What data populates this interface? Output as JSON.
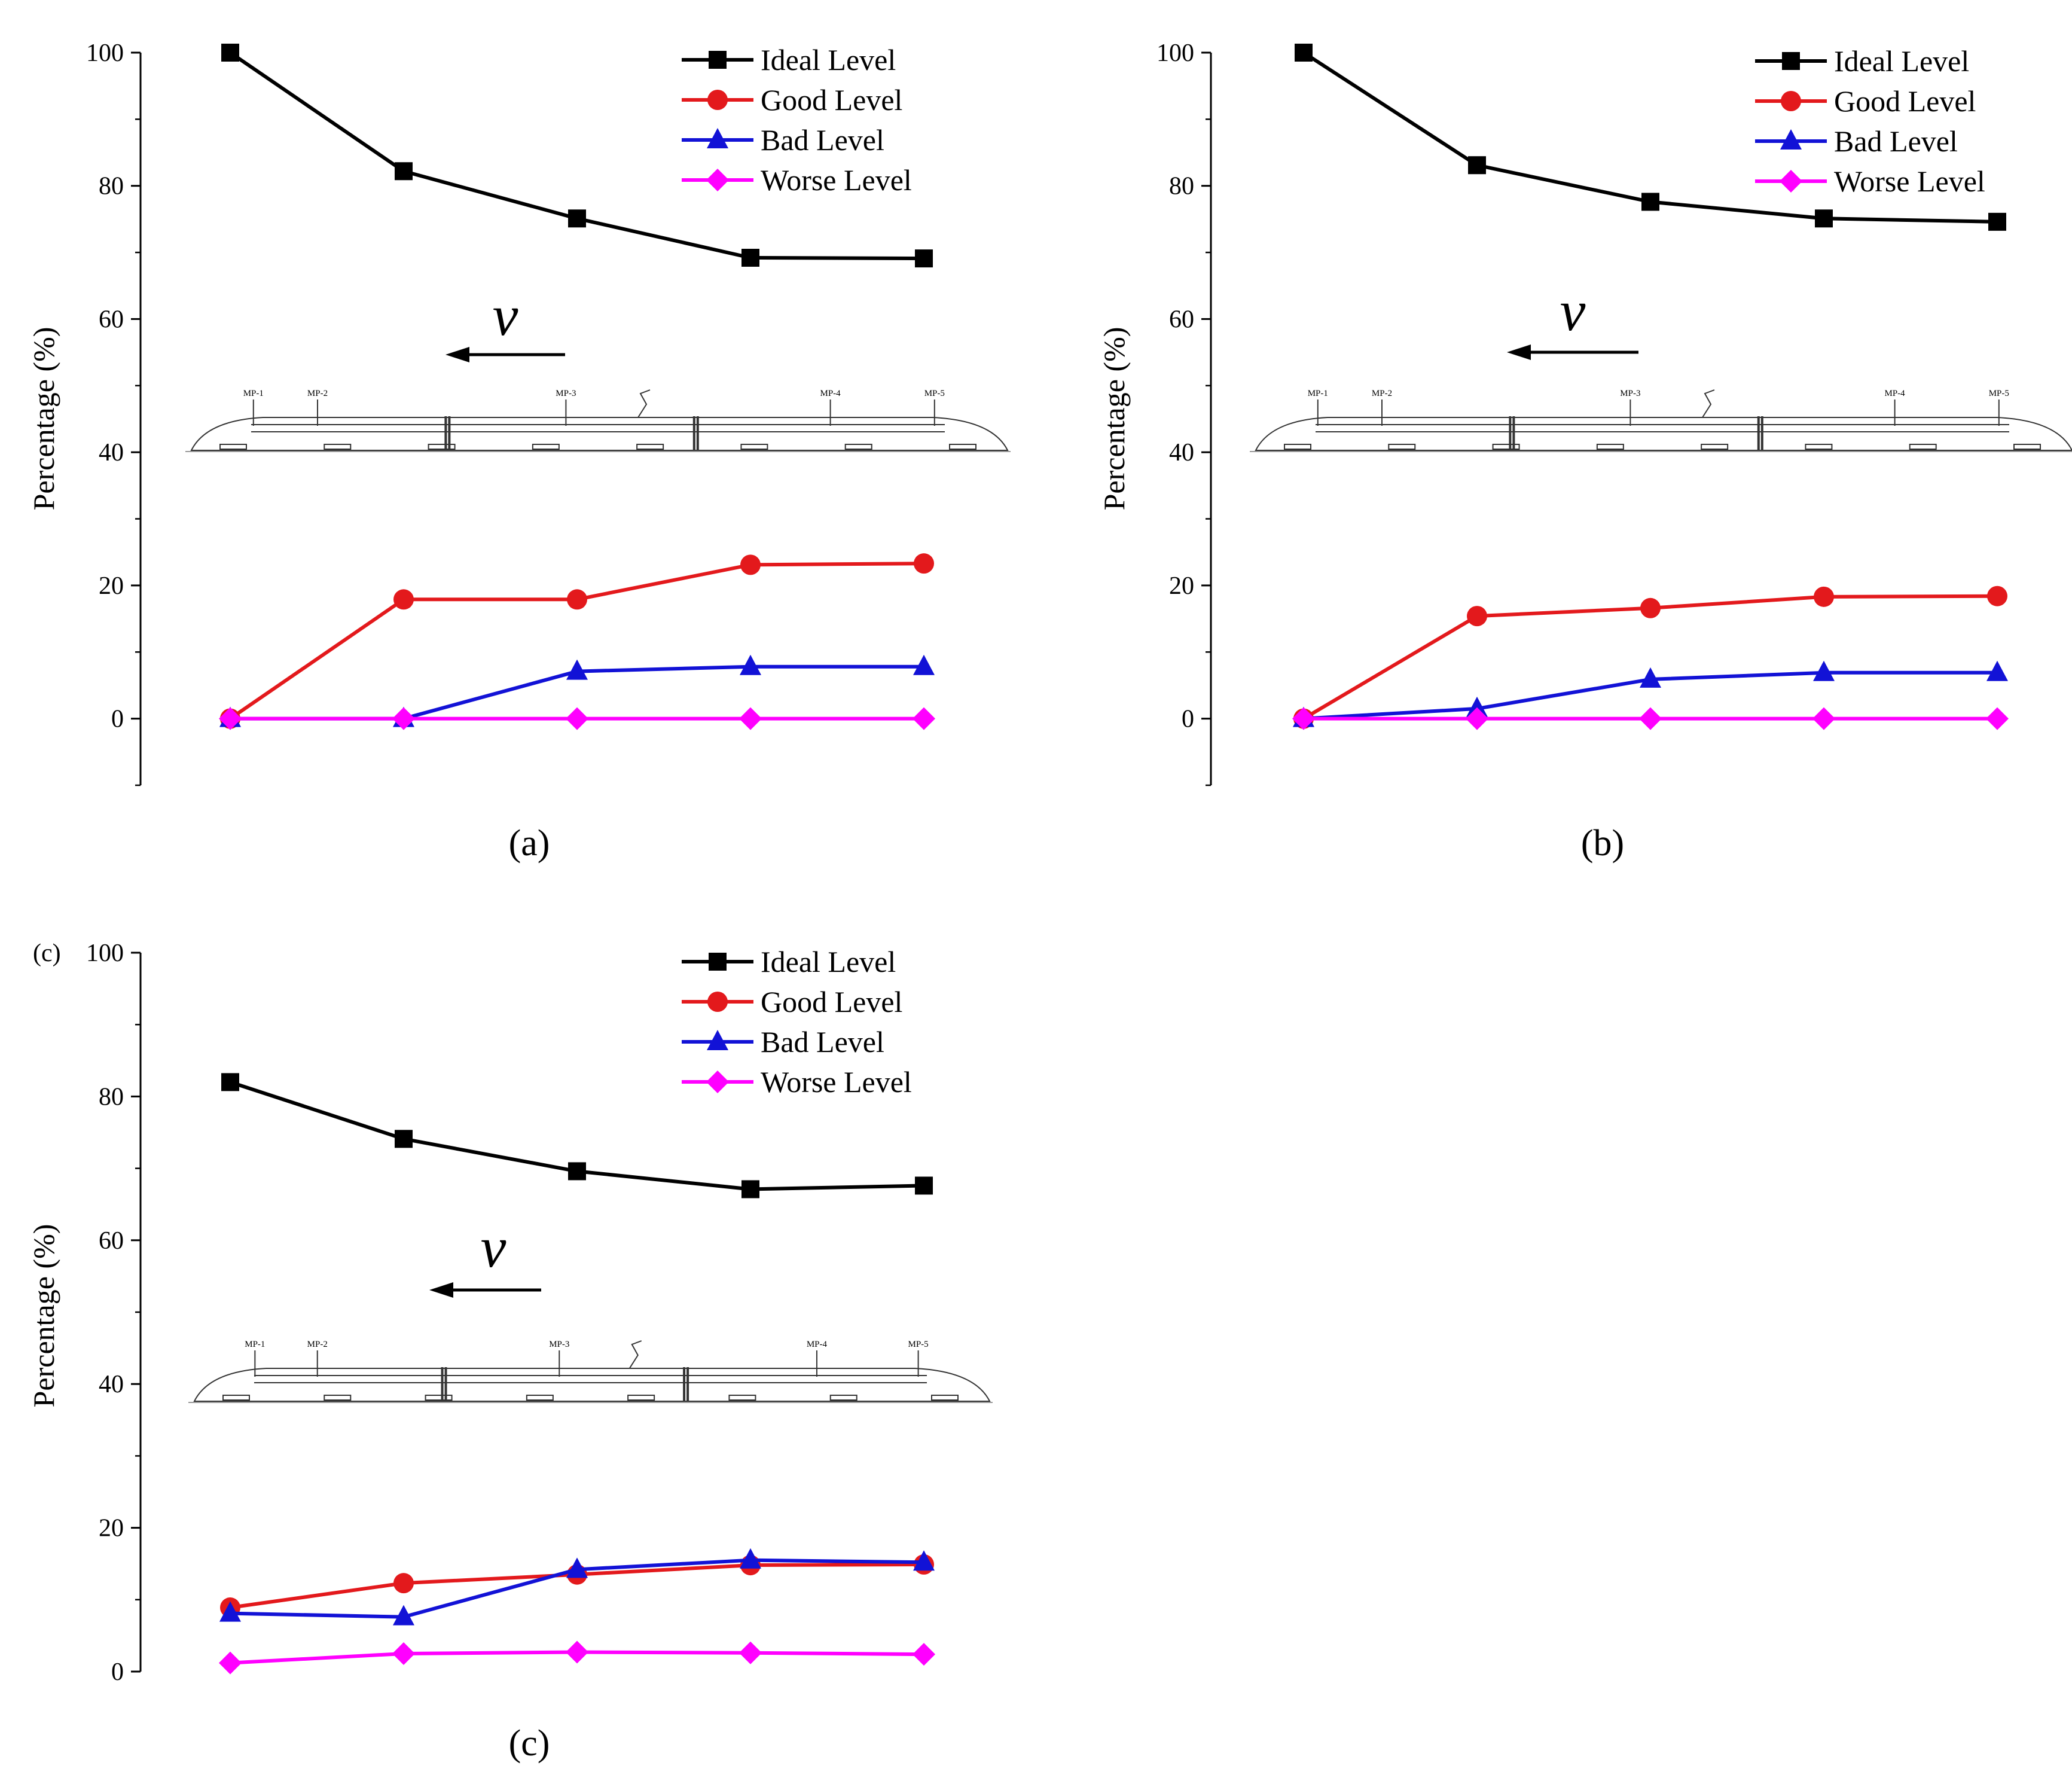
{
  "colors": {
    "ideal": "#000000",
    "good": "#e3191c",
    "bad": "#1212d6",
    "worse": "#ff00ff"
  },
  "chart_data": [
    {
      "type": "line",
      "caption": "(a)",
      "corner_tag": "",
      "ylabel": "Percentage (%)",
      "ylim": [
        -10,
        100
      ],
      "yticks": [
        0,
        20,
        40,
        60,
        80,
        100
      ],
      "x": [
        1,
        2,
        3,
        4,
        5
      ],
      "velocity_label": "v",
      "train_labels": [
        "MP-1",
        "MP-2",
        "MP-3",
        "MP-4",
        "MP-5"
      ],
      "series": [
        {
          "key": "ideal",
          "name": "Ideal Level",
          "marker": "square",
          "values": [
            100,
            82.2,
            75.1,
            69.2,
            69.1
          ]
        },
        {
          "key": "good",
          "name": "Good Level",
          "marker": "circle",
          "values": [
            0,
            17.9,
            17.9,
            23.1,
            23.3
          ]
        },
        {
          "key": "bad",
          "name": "Bad Level",
          "marker": "triangle",
          "values": [
            0,
            0,
            7.1,
            7.8,
            7.8
          ]
        },
        {
          "key": "worse",
          "name": "Worse Level",
          "marker": "diamond",
          "values": [
            0,
            0,
            0,
            0,
            0
          ]
        }
      ]
    },
    {
      "type": "line",
      "caption": "(b)",
      "corner_tag": "",
      "ylabel": "Percentage (%)",
      "ylim": [
        -10,
        100
      ],
      "yticks": [
        0,
        20,
        40,
        60,
        80,
        100
      ],
      "x": [
        1,
        2,
        3,
        4,
        5
      ],
      "velocity_label": "v",
      "train_labels": [
        "MP-1",
        "MP-2",
        "MP-3",
        "MP-4",
        "MP-5"
      ],
      "series": [
        {
          "key": "ideal",
          "name": "Ideal Level",
          "marker": "square",
          "values": [
            100,
            83.1,
            77.6,
            75.1,
            74.6
          ]
        },
        {
          "key": "good",
          "name": "Good Level",
          "marker": "circle",
          "values": [
            0,
            15.4,
            16.6,
            18.3,
            18.4
          ]
        },
        {
          "key": "bad",
          "name": "Bad Level",
          "marker": "triangle",
          "values": [
            0,
            1.5,
            5.9,
            6.9,
            6.9
          ]
        },
        {
          "key": "worse",
          "name": "Worse Level",
          "marker": "diamond",
          "values": [
            0,
            0,
            0,
            0,
            0
          ]
        }
      ]
    },
    {
      "type": "line",
      "caption": "(c)",
      "corner_tag": "(c)",
      "ylabel": "Percentage (%)",
      "ylim": [
        0,
        100
      ],
      "yticks": [
        0,
        20,
        40,
        60,
        80,
        100
      ],
      "x": [
        1,
        2,
        3,
        4,
        5
      ],
      "velocity_label": "v",
      "train_labels": [
        "MP-1",
        "MP-2",
        "MP-3",
        "MP-4",
        "MP-5"
      ],
      "series": [
        {
          "key": "ideal",
          "name": "Ideal Level",
          "marker": "square",
          "values": [
            82,
            74.1,
            69.6,
            67.1,
            67.6
          ]
        },
        {
          "key": "good",
          "name": "Good Level",
          "marker": "circle",
          "values": [
            8.9,
            12.3,
            13.5,
            14.8,
            14.9
          ]
        },
        {
          "key": "bad",
          "name": "Bad Level",
          "marker": "triangle",
          "values": [
            8.1,
            7.6,
            14.2,
            15.5,
            15.2
          ]
        },
        {
          "key": "worse",
          "name": "Worse Level",
          "marker": "diamond",
          "values": [
            1.2,
            2.5,
            2.7,
            2.6,
            2.4
          ]
        }
      ]
    }
  ]
}
